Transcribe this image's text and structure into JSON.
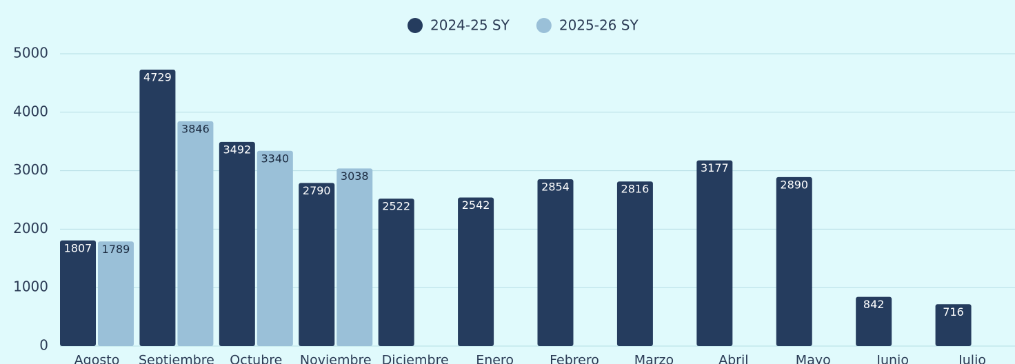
{
  "chart_data": {
    "type": "bar",
    "categories": [
      "Agosto",
      "Septiembre",
      "Octubre",
      "Noviembre",
      "Diciembre",
      "Enero",
      "Febrero",
      "Marzo",
      "Abril",
      "Mayo",
      "Junio",
      "Julio"
    ],
    "series": [
      {
        "name": "2024-25 SY",
        "color": "#253c5e",
        "values": [
          1807,
          4729,
          3492,
          2790,
          2522,
          2542,
          2854,
          2816,
          3177,
          2890,
          842,
          716
        ]
      },
      {
        "name": "2025-26 SY",
        "color": "#9ac0d8",
        "values": [
          1789,
          3846,
          3340,
          3038,
          null,
          null,
          null,
          null,
          null,
          null,
          null,
          null
        ]
      }
    ],
    "ylim": [
      0,
      5000
    ],
    "yticks": [
      0,
      1000,
      2000,
      3000,
      4000,
      5000
    ],
    "grid": true,
    "legend": "top"
  }
}
